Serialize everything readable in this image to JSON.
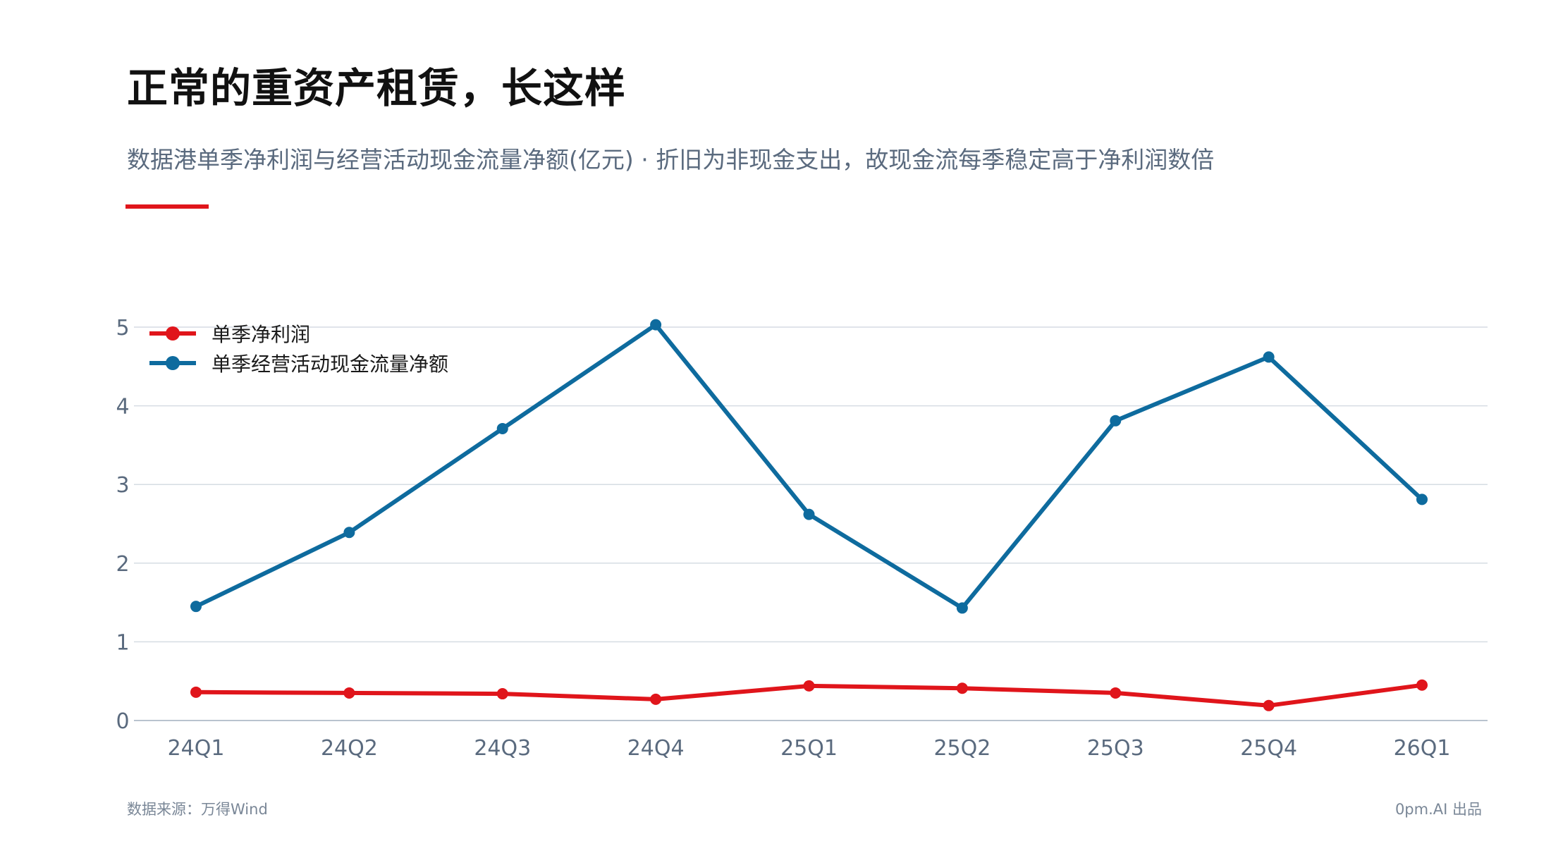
{
  "header": {
    "title": "正常的重资产租赁，长这样",
    "subtitle": "数据港单季净利润与经营活动现金流量净额(亿元) · 折旧为非现金支出，故现金流每季稳定高于净利润数倍"
  },
  "footer": {
    "source": "数据来源：万得Wind",
    "credit": "0pm.AI 出品"
  },
  "colors": {
    "accent": "#e0151b",
    "net_profit": "#e0151b",
    "cash_flow": "#0e6b9e",
    "grid": "#d6dce3",
    "axis_text": "#5a6a7e"
  },
  "chart_data": {
    "type": "line",
    "title": "",
    "xlabel": "",
    "ylabel": "",
    "categories": [
      "24Q1",
      "24Q2",
      "24Q3",
      "24Q4",
      "25Q1",
      "25Q2",
      "25Q3",
      "25Q4",
      "26Q1"
    ],
    "yticks": [
      "0",
      "1",
      "2",
      "3",
      "4",
      "5"
    ],
    "ylim": [
      0,
      5.05
    ],
    "grid": true,
    "legend_position": "top-left",
    "series": [
      {
        "name": "单季净利润",
        "color": "#e0151b",
        "values": [
          0.36,
          0.35,
          0.34,
          0.27,
          0.44,
          0.41,
          0.35,
          0.19,
          0.45
        ]
      },
      {
        "name": "单季经营活动现金流量净额",
        "color": "#0e6b9e",
        "values": [
          1.45,
          2.39,
          3.71,
          5.03,
          2.62,
          1.43,
          3.81,
          4.62,
          2.81
        ]
      }
    ]
  }
}
